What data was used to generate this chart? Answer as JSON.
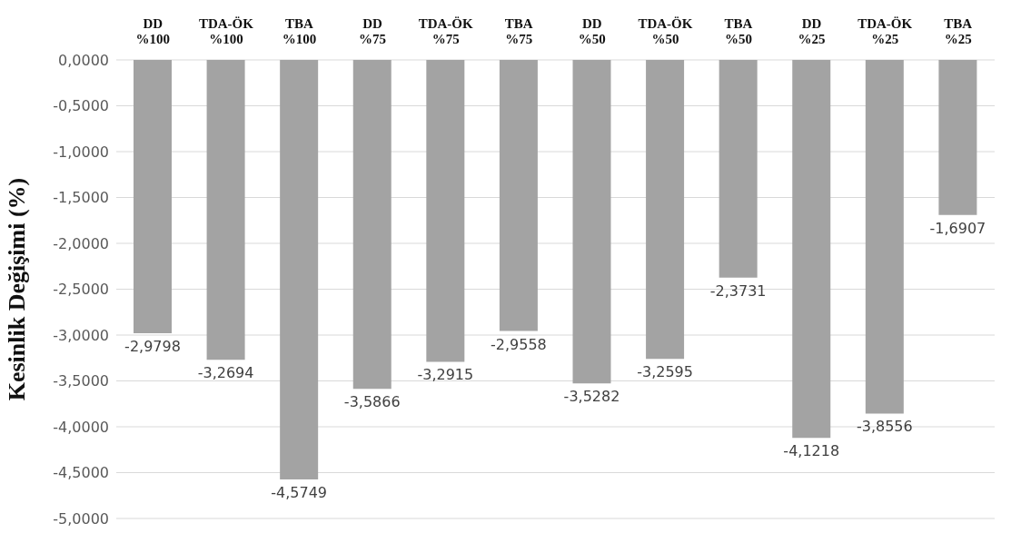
{
  "chart_data": {
    "type": "bar",
    "ylabel": "Kesinlik Değişimi (%)",
    "categories": [
      "DD %100",
      "TDA-ÖK %100",
      "TBA %100",
      "DD %75",
      "TDA-ÖK %75",
      "TBA %75",
      "DD %50",
      "TDA-ÖK %50",
      "TBA %50",
      "DD %25",
      "TDA-ÖK %25",
      "TBA %25"
    ],
    "values": [
      -2.9798,
      -3.2694,
      -4.5749,
      -3.5866,
      -3.2915,
      -2.9558,
      -3.5282,
      -3.2595,
      -2.3731,
      -4.1218,
      -3.8556,
      -1.6907
    ],
    "value_labels": [
      "-2,9798",
      "-3,2694",
      "-4,5749",
      "-3,5866",
      "-3,2915",
      "-2,9558",
      "-3,5282",
      "-3,2595",
      "-2,3731",
      "-4,1218",
      "-3,8556",
      "-1,6907"
    ],
    "color": "#a3a3a3",
    "ylim": [
      -5,
      0
    ],
    "yticks": [
      {
        "value": 0,
        "label": "0,0000"
      },
      {
        "value": -0.5,
        "label": "-0,5000"
      },
      {
        "value": -1,
        "label": "-1,0000"
      },
      {
        "value": -1.5,
        "label": "-1,5000"
      },
      {
        "value": -2,
        "label": "-2,0000"
      },
      {
        "value": -2.5,
        "label": "-2,5000"
      },
      {
        "value": -3,
        "label": "-3,0000"
      },
      {
        "value": -3.5,
        "label": "-3,5000"
      },
      {
        "value": -4,
        "label": "-4,0000"
      },
      {
        "value": -4.5,
        "label": "-4,5000"
      },
      {
        "value": -5,
        "label": "-5,0000"
      }
    ],
    "grid": "y"
  }
}
